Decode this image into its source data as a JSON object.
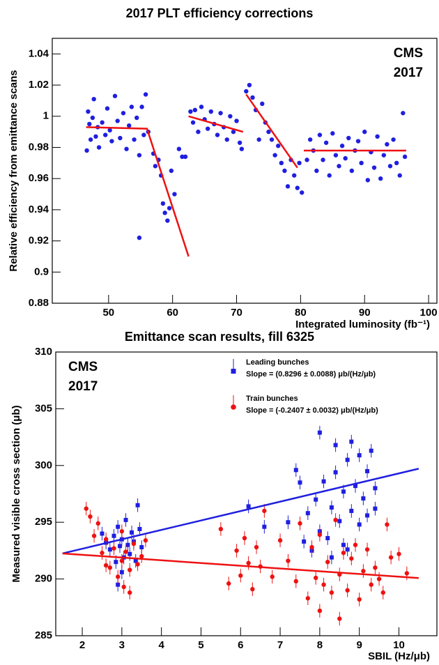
{
  "chart_data": [
    {
      "type": "scatter",
      "title": "2017 PLT efficiency corrections",
      "x_label": "Integrated luminosity (fb⁻¹)",
      "y_label": "Relative efficiency from emittance scans",
      "annotations": [
        "CMS",
        "2017"
      ],
      "annotation_corner": "top-right",
      "xlim": [
        41.2,
        101.3
      ],
      "ylim": [
        0.88,
        1.05
      ],
      "xticks": [
        50,
        60,
        70,
        80,
        90,
        100
      ],
      "yticks": [
        0.88,
        0.9,
        0.92,
        0.94,
        0.96,
        0.98,
        1,
        1.02,
        1.04
      ],
      "series": [
        {
          "color": "#1f1fe0",
          "marker": "circle",
          "x": [
            46.6,
            46.8,
            47,
            47.2,
            47.5,
            47.7,
            48,
            48.3,
            48.5,
            49,
            49.5,
            49.8,
            50.2,
            50.5,
            51,
            51.4,
            51.8,
            52.3,
            52.8,
            53.2,
            53.6,
            54,
            54.4,
            54.8,
            55.2,
            55.5,
            55.8,
            56.2,
            54.8,
            57,
            57.3,
            57.8,
            58.2,
            58.5,
            58.8,
            59.2,
            59.5,
            59.8,
            60.3,
            61,
            61.5,
            62,
            62.8,
            63.2,
            63.5,
            64,
            64.5,
            65,
            65.5,
            66,
            66.5,
            67,
            67.5,
            68,
            68.5,
            69,
            69.5,
            70,
            70.5,
            70.8,
            71.5,
            72,
            72.5,
            73,
            73.5,
            74,
            74.5,
            75,
            75.5,
            76,
            76.5,
            77,
            77.5,
            78,
            78.5,
            79,
            79.5,
            80.2,
            79.8,
            81,
            81.5,
            82,
            82.5,
            83,
            83.5,
            84,
            84.5,
            85,
            85.5,
            86,
            86.5,
            87,
            87.5,
            88,
            88.5,
            89,
            89.5,
            90,
            90.5,
            91,
            91.5,
            92,
            92.5,
            93,
            93.5,
            94,
            94.5,
            95,
            95.5,
            96,
            96.3
          ],
          "values": [
            0.978,
            1.003,
            0.995,
            0.985,
            0.999,
            1.011,
            0.987,
            0.993,
            0.98,
            0.996,
            0.988,
            1.005,
            0.991,
            0.984,
            1.013,
            0.997,
            0.986,
            1.002,
            0.979,
            0.994,
            1.006,
            0.985,
            0.999,
            0.975,
            1.006,
            0.988,
            1.014,
            0.99,
            0.922,
            0.976,
            0.968,
            0.972,
            0.962,
            0.944,
            0.938,
            0.933,
            0.941,
            0.965,
            0.95,
            0.979,
            0.974,
            0.974,
            1.003,
            0.996,
            1.004,
            0.99,
            1.006,
            0.998,
            0.992,
            1.003,
            0.995,
            0.988,
            1.002,
            0.993,
            0.985,
            1,
            0.99,
            0.997,
            0.983,
            0.979,
            1.016,
            1.02,
            1.012,
            1.004,
            0.985,
            1.008,
            0.996,
            0.99,
            0.985,
            0.975,
            0.981,
            0.97,
            0.965,
            0.955,
            0.972,
            0.962,
            0.954,
            0.951,
            0.97,
            0.972,
            0.985,
            0.978,
            0.965,
            0.988,
            0.972,
            0.983,
            0.962,
            0.989,
            0.975,
            0.968,
            0.981,
            0.973,
            0.986,
            0.965,
            0.978,
            0.984,
            0.97,
            0.99,
            0.959,
            0.977,
            0.967,
            0.987,
            0.96,
            0.975,
            0.982,
            0.968,
            0.985,
            0.97,
            0.962,
            1.002,
            0.974
          ]
        }
      ],
      "fits": [
        {
          "color": "#ee1111",
          "x": [
            46.5,
            56,
            62.5
          ],
          "values": [
            0.993,
            0.992,
            0.91
          ]
        },
        {
          "color": "#ee1111",
          "x": [
            62.5,
            71
          ],
          "values": [
            1.0,
            0.99
          ]
        },
        {
          "color": "#ee1111",
          "x": [
            71.5,
            79.5
          ],
          "values": [
            1.014,
            0.967
          ]
        },
        {
          "color": "#ee1111",
          "x": [
            80.5,
            96.5
          ],
          "values": [
            0.978,
            0.978
          ]
        }
      ]
    },
    {
      "type": "scatter",
      "title": "Emittance scan results, fill 6325",
      "x_label": "SBIL (Hz/μb)",
      "y_label": "Measured visible cross section (μb)",
      "annotations": [
        "CMS",
        "2017"
      ],
      "annotation_corner": "top-left",
      "xlim": [
        1.33,
        10.96
      ],
      "ylim": [
        285,
        310
      ],
      "xticks": [
        2,
        3,
        4,
        5,
        6,
        7,
        8,
        9,
        10
      ],
      "yticks": [
        285,
        290,
        295,
        300,
        305,
        310
      ],
      "series": [
        {
          "name": "Leading bunches",
          "fit_label": "Slope = (0.8296 ± 0.0088) μb/(Hz/μb)",
          "color": "#1f1fe0",
          "marker": "square",
          "yerr": 0.6,
          "x": [
            2.5,
            2.7,
            2.8,
            2.85,
            2.9,
            2.95,
            3,
            3.05,
            3.1,
            3.15,
            3.2,
            3.25,
            3.3,
            3.35,
            3.4,
            3.45,
            3.5,
            2.9,
            3,
            2.6,
            6.2,
            6.6,
            7.2,
            7.6,
            7.7,
            7.8,
            7.9,
            8,
            8,
            8.1,
            8.2,
            8.3,
            8.4,
            8.4,
            8.5,
            8.6,
            8.6,
            8.7,
            8.8,
            8.8,
            8.9,
            9,
            9,
            9.1,
            9.2,
            9.2,
            9.3,
            9.4,
            9.4,
            7.5,
            7.4,
            8.3,
            8.7
          ],
          "values": [
            294,
            292.6,
            293.8,
            291.5,
            294.6,
            292.9,
            293.5,
            291.9,
            295.2,
            293,
            292.2,
            294.1,
            293.3,
            291.6,
            296.5,
            294.4,
            292.8,
            289.5,
            290.6,
            293.2,
            296.4,
            294.6,
            295,
            293.3,
            295.8,
            292.5,
            297,
            294.2,
            302.9,
            298.6,
            293.6,
            296.3,
            301.8,
            299.4,
            295.1,
            297.7,
            293,
            300.5,
            296,
            302.1,
            298.2,
            294.8,
            300.9,
            297.1,
            299.5,
            295.6,
            301.3,
            298,
            296.2,
            298.5,
            299.6,
            291.9,
            292.6
          ],
          "fit": {
            "x": [
              1.5,
              10.5
            ],
            "values": [
              292.25,
              299.72
            ]
          }
        },
        {
          "name": "Train bunches",
          "fit_label": "Slope = (-0.2407 ± 0.0032) μb/(Hz/μb)",
          "color": "#ee1111",
          "marker": "circle",
          "yerr": 0.6,
          "x": [
            2.1,
            2.2,
            2.3,
            2.4,
            2.5,
            2.6,
            2.7,
            2.8,
            2.9,
            3,
            3.05,
            3.1,
            3.2,
            3.3,
            3.4,
            3.5,
            3.6,
            3,
            3.2,
            2.6,
            5.5,
            5.7,
            5.9,
            6,
            6.1,
            6.2,
            6.3,
            6.4,
            6.5,
            6.6,
            6.8,
            7,
            7.2,
            7.4,
            7.5,
            7.7,
            7.8,
            7.9,
            8,
            8,
            8.1,
            8.2,
            8.3,
            8.4,
            8.5,
            8.6,
            8.7,
            8.8,
            8.9,
            9,
            9.1,
            9.2,
            9.3,
            9.4,
            9.5,
            9.7,
            9.8,
            10,
            10.2,
            9.6,
            8.5
          ],
          "values": [
            296.2,
            295.5,
            293.8,
            294.9,
            292.3,
            293.5,
            291,
            292.7,
            290.2,
            291.6,
            289.3,
            292.4,
            290.8,
            293.1,
            291.3,
            292,
            293.4,
            294.2,
            288.8,
            291.2,
            294.4,
            289.6,
            292.5,
            290.3,
            293.6,
            291.4,
            289.1,
            292.8,
            291.1,
            296,
            290.2,
            293.4,
            291.6,
            289.8,
            294.9,
            288.3,
            292.8,
            290.1,
            287.2,
            293.9,
            289.5,
            291.5,
            288.8,
            295.2,
            290.4,
            292.3,
            289,
            291.8,
            293,
            288.2,
            290.7,
            292.6,
            289.5,
            291,
            290,
            294.8,
            291.9,
            292.2,
            290.5,
            288.8,
            286.5
          ],
          "fit": {
            "x": [
              1.5,
              10.5
            ],
            "values": [
              292.25,
              290.08
            ]
          }
        }
      ]
    }
  ]
}
